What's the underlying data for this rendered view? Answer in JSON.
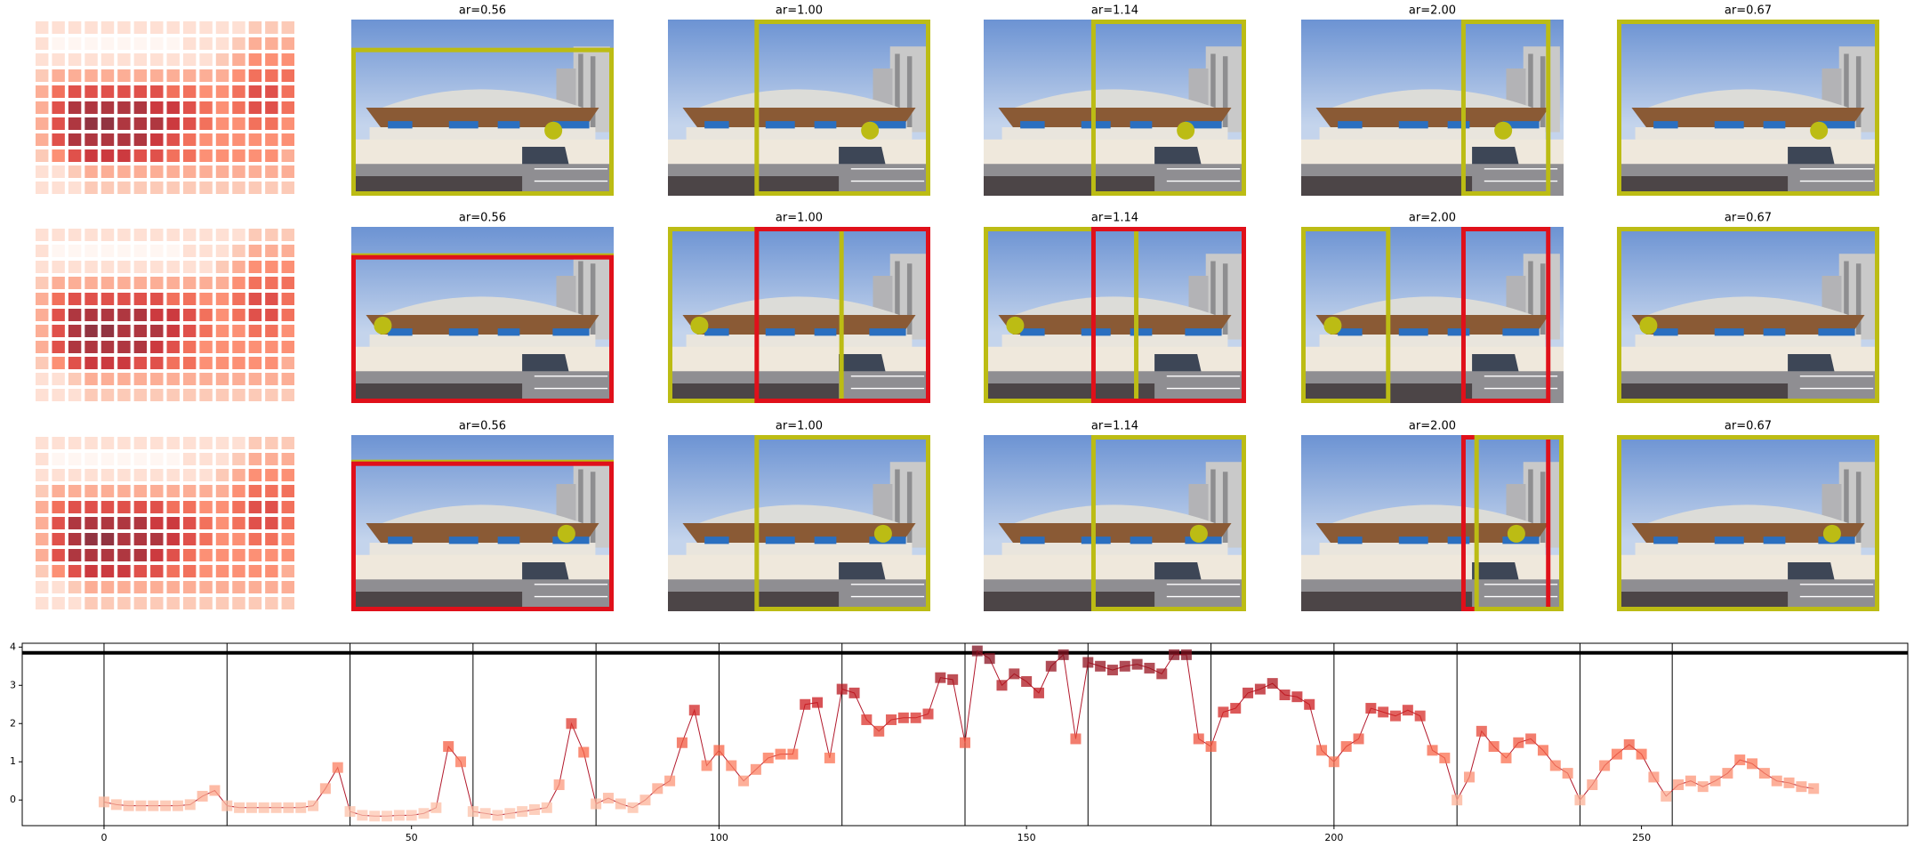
{
  "panel_titles": [
    [
      "ar=0.56",
      "ar=1.00",
      "ar=1.14",
      "ar=2.00",
      "ar=0.67"
    ],
    [
      "ar=0.56",
      "ar=1.00",
      "ar=1.14",
      "ar=2.00",
      "ar=0.67"
    ],
    [
      "ar=0.56",
      "ar=1.00",
      "ar=1.14",
      "ar=2.00",
      "ar=0.67"
    ]
  ],
  "heatmaps": [
    [
      [
        1,
        1,
        1,
        1,
        1,
        1,
        1,
        1,
        1,
        1,
        1,
        1,
        1,
        2,
        2,
        2
      ],
      [
        1,
        0,
        0,
        0,
        0,
        0,
        0,
        0,
        0,
        1,
        1,
        1,
        2,
        3,
        3,
        3
      ],
      [
        1,
        1,
        1,
        1,
        1,
        1,
        1,
        1,
        1,
        1,
        1,
        2,
        3,
        4,
        4,
        4
      ],
      [
        2,
        3,
        3,
        3,
        3,
        3,
        3,
        3,
        3,
        3,
        3,
        3,
        4,
        5,
        5,
        5
      ],
      [
        3,
        5,
        6,
        6,
        6,
        6,
        6,
        6,
        5,
        5,
        4,
        4,
        5,
        6,
        6,
        5
      ],
      [
        3,
        6,
        8,
        8,
        8,
        8,
        8,
        7,
        7,
        6,
        5,
        4,
        5,
        6,
        6,
        5
      ],
      [
        3,
        6,
        8,
        9,
        9,
        8,
        8,
        8,
        7,
        6,
        5,
        4,
        4,
        5,
        5,
        4
      ],
      [
        3,
        6,
        8,
        8,
        8,
        8,
        8,
        7,
        6,
        5,
        4,
        4,
        4,
        4,
        4,
        4
      ],
      [
        2,
        4,
        6,
        7,
        7,
        7,
        6,
        6,
        5,
        5,
        4,
        4,
        4,
        4,
        4,
        3
      ],
      [
        1,
        1,
        2,
        3,
        3,
        3,
        3,
        3,
        3,
        3,
        3,
        3,
        3,
        3,
        3,
        3
      ],
      [
        1,
        1,
        1,
        2,
        2,
        2,
        2,
        2,
        2,
        2,
        2,
        2,
        2,
        2,
        2,
        2
      ]
    ],
    [
      [
        1,
        1,
        1,
        1,
        1,
        1,
        1,
        1,
        1,
        1,
        1,
        1,
        1,
        2,
        2,
        2
      ],
      [
        1,
        0,
        0,
        0,
        0,
        0,
        0,
        0,
        0,
        1,
        1,
        1,
        2,
        3,
        3,
        3
      ],
      [
        1,
        1,
        1,
        1,
        1,
        1,
        1,
        1,
        1,
        1,
        1,
        2,
        3,
        4,
        4,
        4
      ],
      [
        2,
        3,
        3,
        3,
        3,
        3,
        3,
        3,
        3,
        3,
        3,
        3,
        4,
        5,
        5,
        5
      ],
      [
        3,
        5,
        6,
        6,
        6,
        6,
        6,
        6,
        5,
        5,
        4,
        4,
        5,
        6,
        6,
        5
      ],
      [
        3,
        6,
        8,
        8,
        8,
        8,
        8,
        7,
        7,
        6,
        5,
        4,
        5,
        6,
        6,
        5
      ],
      [
        3,
        6,
        8,
        9,
        9,
        8,
        8,
        8,
        7,
        6,
        5,
        4,
        4,
        5,
        5,
        4
      ],
      [
        3,
        6,
        8,
        8,
        8,
        8,
        8,
        7,
        6,
        5,
        4,
        4,
        4,
        4,
        4,
        4
      ],
      [
        2,
        4,
        6,
        7,
        7,
        7,
        6,
        6,
        5,
        5,
        4,
        4,
        4,
        4,
        4,
        3
      ],
      [
        1,
        1,
        2,
        3,
        3,
        3,
        3,
        3,
        3,
        3,
        3,
        3,
        3,
        3,
        3,
        3
      ],
      [
        1,
        1,
        1,
        2,
        2,
        2,
        2,
        2,
        2,
        2,
        2,
        2,
        2,
        2,
        2,
        2
      ]
    ],
    [
      [
        1,
        1,
        1,
        1,
        1,
        1,
        1,
        1,
        1,
        1,
        1,
        1,
        1,
        2,
        2,
        2
      ],
      [
        1,
        0,
        0,
        0,
        0,
        0,
        0,
        0,
        0,
        1,
        1,
        1,
        2,
        3,
        3,
        3
      ],
      [
        1,
        1,
        1,
        1,
        1,
        1,
        1,
        1,
        1,
        1,
        1,
        2,
        3,
        4,
        4,
        4
      ],
      [
        2,
        3,
        3,
        3,
        3,
        3,
        3,
        3,
        3,
        3,
        3,
        3,
        4,
        5,
        5,
        5
      ],
      [
        3,
        5,
        6,
        6,
        6,
        6,
        6,
        6,
        5,
        5,
        4,
        4,
        5,
        6,
        6,
        5
      ],
      [
        3,
        6,
        8,
        8,
        8,
        8,
        8,
        7,
        7,
        6,
        5,
        4,
        5,
        6,
        6,
        5
      ],
      [
        3,
        6,
        8,
        9,
        9,
        8,
        8,
        8,
        7,
        6,
        5,
        4,
        4,
        5,
        5,
        4
      ],
      [
        3,
        6,
        8,
        8,
        8,
        8,
        8,
        7,
        6,
        5,
        4,
        4,
        4,
        4,
        4,
        4
      ],
      [
        2,
        4,
        6,
        7,
        7,
        7,
        6,
        6,
        5,
        5,
        4,
        4,
        4,
        4,
        4,
        3
      ],
      [
        1,
        1,
        2,
        3,
        3,
        3,
        3,
        3,
        3,
        3,
        3,
        3,
        3,
        3,
        3,
        3
      ],
      [
        1,
        1,
        1,
        2,
        2,
        2,
        2,
        2,
        2,
        2,
        2,
        2,
        2,
        2,
        2,
        2
      ]
    ]
  ],
  "cmap": [
    "#fff5f0",
    "#fcbba1",
    "#fb6a4a",
    "#cb181d",
    "#7f1020"
  ],
  "chart_data": {
    "type": "line",
    "x": [
      0,
      2,
      4,
      6,
      8,
      10,
      12,
      14,
      16,
      18,
      20,
      22,
      24,
      26,
      28,
      30,
      32,
      34,
      36,
      38,
      40,
      42,
      44,
      46,
      48,
      50,
      52,
      54,
      56,
      58,
      60,
      62,
      64,
      66,
      68,
      70,
      72,
      74,
      76,
      78,
      80,
      82,
      84,
      86,
      88,
      90,
      92,
      94,
      96,
      98,
      100,
      102,
      104,
      106,
      108,
      110,
      112,
      114,
      116,
      118,
      120,
      122,
      124,
      126,
      128,
      130,
      132,
      134,
      136,
      138,
      140,
      142,
      144,
      146,
      148,
      150,
      152,
      154,
      156,
      158,
      160,
      162,
      164,
      166,
      168,
      170,
      172,
      174,
      176,
      178,
      180,
      182,
      184,
      186,
      188,
      190,
      192,
      194,
      196,
      198,
      200,
      202,
      204,
      206,
      208,
      210,
      212,
      214,
      216,
      218,
      220,
      222,
      224,
      226,
      228,
      230,
      232,
      234,
      236,
      238,
      240,
      242,
      244,
      246,
      248,
      250,
      252,
      254,
      256,
      258,
      260,
      262,
      264,
      266,
      268,
      270,
      272,
      274,
      276,
      278
    ],
    "values": [
      -0.05,
      -0.12,
      -0.15,
      -0.15,
      -0.15,
      -0.15,
      -0.15,
      -0.12,
      0.1,
      0.25,
      -0.15,
      -0.2,
      -0.2,
      -0.2,
      -0.2,
      -0.2,
      -0.2,
      -0.15,
      0.3,
      0.85,
      -0.3,
      -0.4,
      -0.42,
      -0.42,
      -0.4,
      -0.4,
      -0.35,
      -0.2,
      1.4,
      1.0,
      -0.3,
      -0.35,
      -0.4,
      -0.35,
      -0.3,
      -0.25,
      -0.2,
      0.4,
      2.0,
      1.25,
      -0.1,
      0.05,
      -0.1,
      -0.2,
      0.0,
      0.3,
      0.5,
      1.5,
      2.35,
      0.9,
      1.3,
      0.9,
      0.5,
      0.8,
      1.1,
      1.2,
      1.2,
      2.5,
      2.55,
      1.1,
      2.9,
      2.8,
      2.1,
      1.8,
      2.1,
      2.15,
      2.15,
      2.25,
      3.2,
      3.15,
      1.5,
      3.9,
      3.7,
      3.0,
      3.3,
      3.1,
      2.8,
      3.5,
      3.8,
      1.6,
      3.6,
      3.5,
      3.4,
      3.5,
      3.55,
      3.45,
      3.3,
      3.8,
      3.8,
      1.6,
      1.4,
      2.3,
      2.4,
      2.8,
      2.9,
      3.05,
      2.75,
      2.7,
      2.5,
      1.3,
      1.0,
      1.4,
      1.6,
      2.4,
      2.3,
      2.2,
      2.35,
      2.2,
      1.3,
      1.1,
      0.0,
      0.6,
      1.8,
      1.4,
      1.1,
      1.5,
      1.6,
      1.3,
      0.9,
      0.7,
      0.0,
      0.4,
      0.9,
      1.2,
      1.45,
      1.2,
      0.6,
      0.1,
      0.4,
      0.5,
      0.35,
      0.5,
      0.7,
      1.05,
      0.95,
      0.7,
      0.5,
      0.45,
      0.35,
      0.3
    ],
    "xlim": [
      -13.3,
      293.3
    ],
    "ylim": [
      -0.67,
      4.1
    ],
    "xticks": [
      0,
      50,
      100,
      150,
      200,
      250
    ],
    "yticks": [
      0,
      1,
      2,
      3,
      4
    ],
    "vlines": [
      0,
      20,
      40,
      60,
      80,
      100,
      120,
      140,
      160,
      180,
      200,
      220,
      240,
      255
    ],
    "hline": 3.85,
    "line_color": "#b2182b"
  }
}
